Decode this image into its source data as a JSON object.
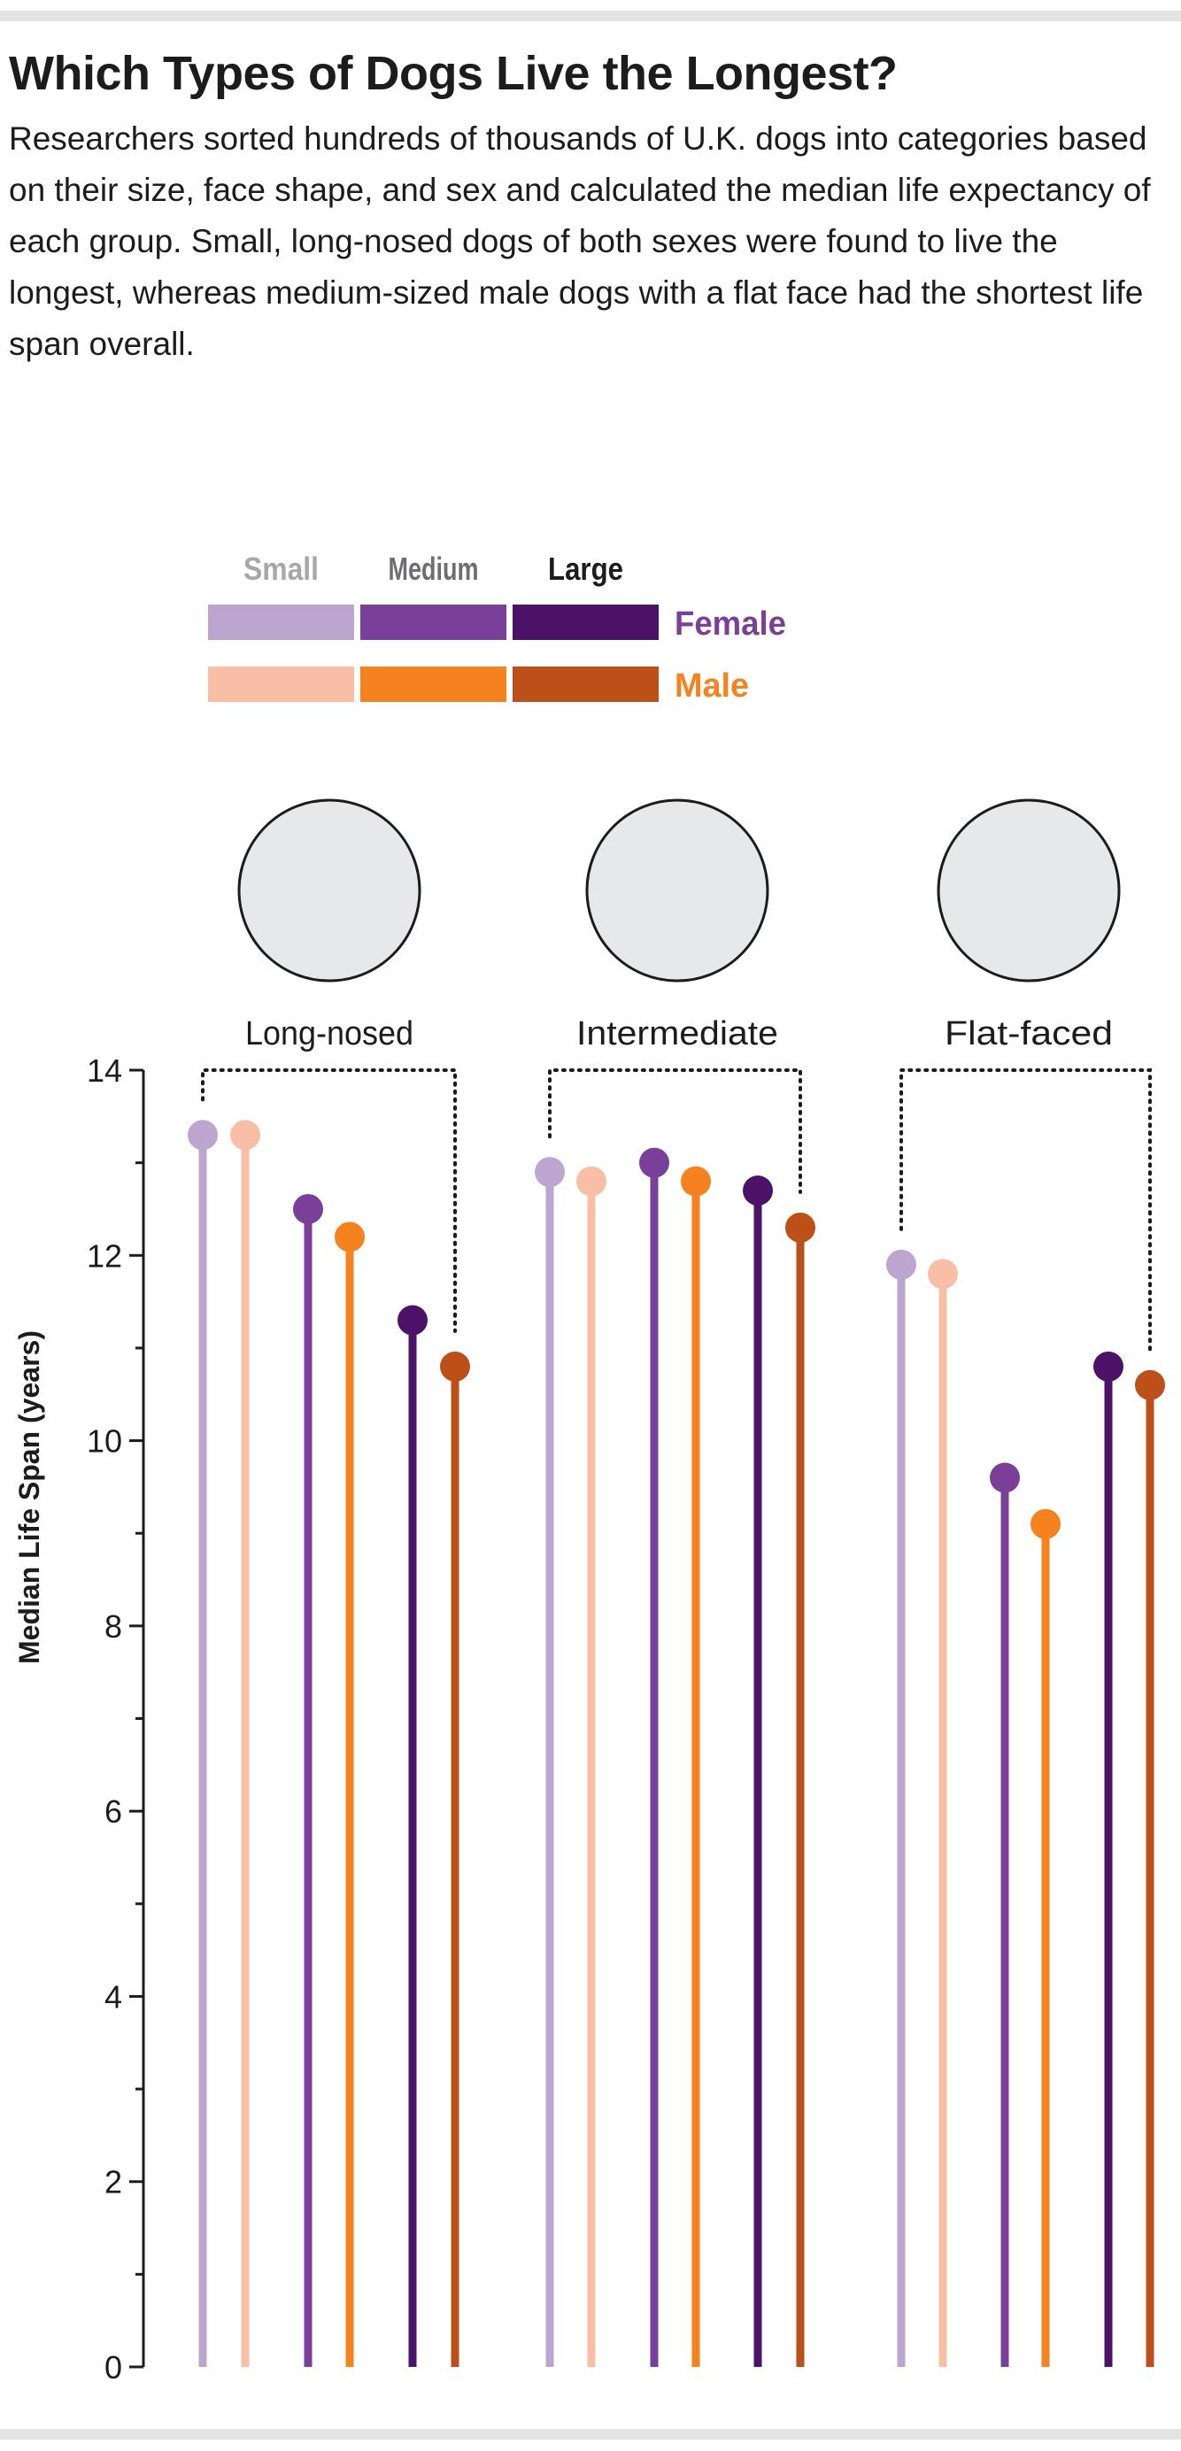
{
  "title": "Which Types of Dogs Live the Longest?",
  "description": "Researchers sorted hundreds of thousands of U.K. dogs into categories based on their size, face shape, and sex and calculated the median life expectancy of each group. Small, long-nosed dogs of both sexes were found to live the longest, whereas medium-sized male dogs with a flat face had the shortest life span overall.",
  "legend": {
    "sizes": [
      "Small",
      "Medium",
      "Large"
    ],
    "size_label_colors": [
      "#a7a7a9",
      "#6d6e70",
      "#1c1c1c"
    ],
    "sexes": [
      {
        "label": "Female",
        "color": "#7a3f98",
        "swatches": [
          "#bca6cf",
          "#7a3f98",
          "#4b1267"
        ]
      },
      {
        "label": "Male",
        "color": "#f5821f",
        "swatches": [
          "#f9bea6",
          "#f5821f",
          "#bd4f19"
        ]
      }
    ]
  },
  "chart_data": {
    "type": "lollipop",
    "ylabel": "Median Life Span (years)",
    "ylim": [
      0,
      14
    ],
    "yticks": [
      0,
      2,
      4,
      6,
      8,
      10,
      12,
      14
    ],
    "groups": [
      {
        "label": "Long-nosed",
        "icon": "long-nosed-dog-silhouette"
      },
      {
        "label": "Intermediate",
        "icon": "intermediate-dog-silhouette"
      },
      {
        "label": "Flat-faced",
        "icon": "flat-faced-dog-silhouette"
      }
    ],
    "series_order": [
      "Small Female",
      "Small Male",
      "Medium Female",
      "Medium Male",
      "Large Female",
      "Large Male"
    ],
    "colors": [
      "#bca6cf",
      "#f9bea6",
      "#7a3f98",
      "#f5821f",
      "#4b1267",
      "#bd4f19"
    ],
    "values": [
      [
        13.3,
        13.3,
        12.5,
        12.2,
        11.3,
        10.8
      ],
      [
        12.9,
        12.8,
        13.0,
        12.8,
        12.7,
        12.3
      ],
      [
        11.9,
        11.8,
        9.6,
        9.1,
        10.8,
        10.6
      ]
    ]
  }
}
